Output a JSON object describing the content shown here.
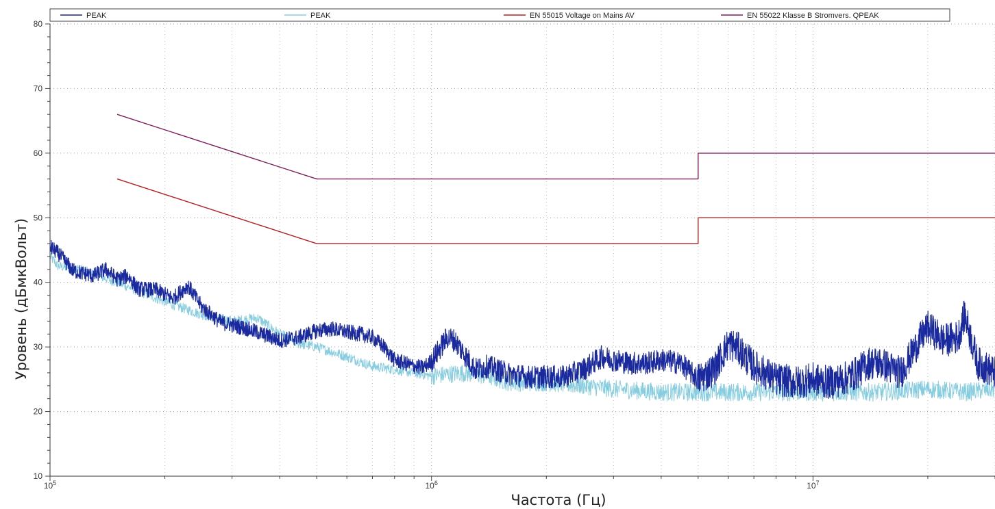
{
  "chart_data": {
    "type": "line",
    "xscale": "log",
    "xlim": [
      100000,
      30000000
    ],
    "ylim": [
      10,
      80
    ],
    "xlabel": "Частота (Гц)",
    "ylabel": "Уровень (дБмкВольт)",
    "x_ticks": [
      {
        "value": 100000,
        "base": "10",
        "exp": "5"
      },
      {
        "value": 1000000,
        "base": "10",
        "exp": "6"
      },
      {
        "value": 10000000,
        "base": "10",
        "exp": "7"
      }
    ],
    "y_ticks": [
      10,
      20,
      30,
      40,
      50,
      60,
      70,
      80
    ],
    "grid": true,
    "legend_position": "top",
    "series": [
      {
        "name": "PEAK",
        "color": "#1a237e",
        "noise": "dense",
        "x": [
          100000,
          105000,
          115000,
          130000,
          140000,
          150000,
          160000,
          170000,
          190000,
          210000,
          230000,
          250000,
          280000,
          320000,
          360000,
          400000,
          450000,
          500000,
          550000,
          600000,
          650000,
          700000,
          750000,
          800000,
          850000,
          900000,
          950000,
          1000000,
          1100000,
          1150000,
          1200000,
          1300000,
          1400000,
          1600000,
          1800000,
          2000000,
          2200000,
          2500000,
          2800000,
          3000000,
          3300000,
          3700000,
          4000000,
          4500000,
          5000000,
          5500000,
          6000000,
          6300000,
          7000000,
          8000000,
          9000000,
          10000000,
          11000000,
          12000000,
          13000000,
          14000000,
          15000000,
          17000000,
          19000000,
          20000000,
          22000000,
          24000000,
          25000000,
          27000000,
          30000000
        ],
        "y": [
          45.5,
          44.5,
          41.8,
          41,
          42,
          40.5,
          41,
          39,
          38.8,
          37.5,
          39.5,
          36.2,
          33.8,
          33,
          32,
          31,
          31.5,
          32.5,
          32.8,
          32.3,
          32,
          31.5,
          30,
          28,
          27.5,
          27,
          26.8,
          27.8,
          31.5,
          31,
          29.5,
          26.5,
          27,
          25.8,
          25.3,
          25.4,
          25.3,
          26.5,
          28.5,
          28,
          27.5,
          27.5,
          28,
          27.5,
          25,
          26.5,
          30.5,
          30,
          27,
          25,
          24.5,
          25,
          24.5,
          25,
          26,
          27.5,
          27.5,
          26,
          31,
          33,
          31,
          31.5,
          35,
          27.5,
          26
        ]
      },
      {
        "name": "PEAK",
        "color": "#87cde0",
        "noise": "light",
        "x": [
          100000,
          105000,
          120000,
          150000,
          200000,
          250000,
          300000,
          350000,
          400000,
          450000,
          500000,
          600000,
          700000,
          800000,
          900000,
          1000000,
          1200000,
          1400000,
          1600000,
          2000000,
          2500000,
          3000000,
          4000000,
          5000000,
          6000000,
          7000000,
          8000000,
          10000000,
          13000000,
          15000000,
          20000000,
          25000000,
          30000000
        ],
        "y": [
          44,
          42.5,
          42,
          40,
          37,
          35,
          34,
          34.5,
          32,
          30.5,
          30,
          28.5,
          27,
          26.5,
          26,
          25.5,
          26,
          25.5,
          24.5,
          24.5,
          24,
          23.5,
          23,
          23,
          23,
          23,
          23,
          23,
          23,
          23,
          23.5,
          23,
          23.5
        ]
      },
      {
        "name": "EN 55015 Voltage on Mains AV",
        "color": "#b22222",
        "x": [
          150000,
          500000,
          5000000,
          5000000,
          30000000
        ],
        "y": [
          56,
          46,
          46,
          50,
          50
        ]
      },
      {
        "name": "EN 55022 Klasse B Stromvers. QPEAK",
        "color": "#7b1f5a",
        "x": [
          150000,
          500000,
          5000000,
          5000000,
          30000000
        ],
        "y": [
          66,
          56,
          56,
          60,
          60
        ]
      }
    ]
  }
}
